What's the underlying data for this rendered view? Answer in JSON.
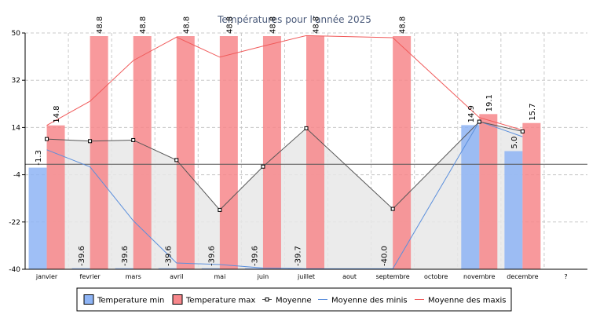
{
  "colors": {
    "background": "#ffffff",
    "grid": "#c8c8c8",
    "axis": "#000000",
    "title": "#4a5a7a",
    "min_bar": "#8eb4f5",
    "max_bar": "#f7878b",
    "average_line": "#555555",
    "average_fill": "#e8e8e8",
    "min_avg_line": "#5b8fdc",
    "max_avg_line": "#f05a5a",
    "reference_line": "#555555"
  },
  "chart_data": {
    "type": "bar",
    "title": "Températures pour l'année 2025",
    "categories": [
      "janvier",
      "fevrier",
      "mars",
      "avril",
      "mai",
      "juin",
      "juillet",
      "aout",
      "septembre",
      "octobre",
      "novembre",
      "decembre",
      "?"
    ],
    "ylim": [
      -40,
      50
    ],
    "yticks": [
      50,
      32,
      14,
      -4,
      -22,
      -40
    ],
    "grid": true,
    "legend_position": "bottom",
    "reference_line": 0,
    "series": [
      {
        "name": "Temperature min",
        "kind": "bar",
        "color": "#8eb4f5",
        "values": [
          -1.3,
          -39.6,
          -39.6,
          -39.6,
          -39.6,
          -39.6,
          -39.7,
          null,
          -40.0,
          null,
          14.9,
          5.0,
          null
        ],
        "labels": [
          "-1.3",
          "-39.6",
          "-39.6",
          "-39.6",
          "-39.6",
          "-39.6",
          "-39.7",
          "",
          "-40.0",
          "",
          "14.9",
          "5.0",
          ""
        ]
      },
      {
        "name": "Temperature max",
        "kind": "bar",
        "color": "#f7878b",
        "values": [
          14.8,
          48.8,
          48.8,
          48.8,
          48.8,
          48.8,
          48.8,
          null,
          48.8,
          null,
          19.1,
          15.7,
          null
        ],
        "labels": [
          "14.8",
          "48.8",
          "48.8",
          "48.8",
          "48.8",
          "48.8",
          "48.8",
          "",
          "48.8",
          "",
          "19.1",
          "15.7",
          ""
        ]
      },
      {
        "name": "Moyenne",
        "kind": "line-area",
        "color": "#555555",
        "values": [
          9.6,
          8.8,
          9.2,
          1.6,
          -17.4,
          -0.9,
          13.7,
          null,
          -17.0,
          null,
          16.2,
          12.5,
          null
        ]
      },
      {
        "name": "Moyenne des minis",
        "kind": "line",
        "color": "#5b8fdc",
        "values": [
          5.5,
          -1.0,
          -21.5,
          -37.6,
          -38.2,
          -39.5,
          -39.8,
          null,
          -39.8,
          null,
          16.3,
          10.5,
          null
        ]
      },
      {
        "name": "Moyenne des maxis",
        "kind": "line",
        "color": "#f05a5a",
        "values": [
          14.8,
          24.0,
          39.5,
          48.4,
          40.8,
          45.0,
          49.0,
          null,
          48.2,
          null,
          17.8,
          13.0,
          null
        ]
      }
    ]
  }
}
